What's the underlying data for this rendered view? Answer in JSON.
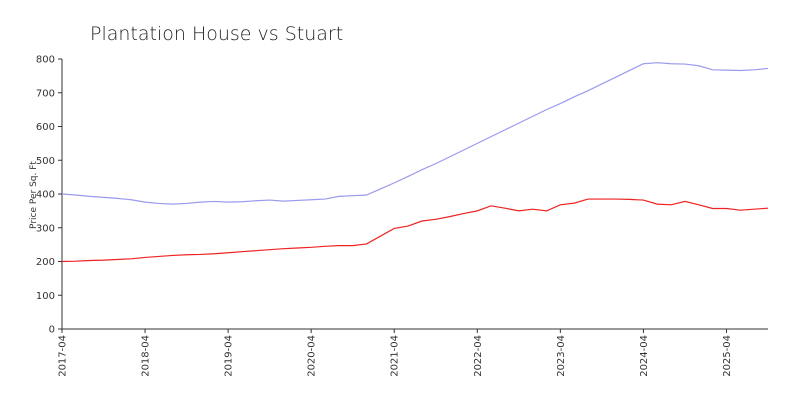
{
  "chart_data": {
    "type": "line",
    "title": "Plantation House vs Stuart",
    "y_label": "Price Per Sq. Ft",
    "x": [
      "2017-04",
      "2017-06",
      "2017-08",
      "2017-10",
      "2017-12",
      "2018-02",
      "2018-04",
      "2018-06",
      "2018-08",
      "2018-10",
      "2018-12",
      "2019-02",
      "2019-04",
      "2019-06",
      "2019-08",
      "2019-10",
      "2019-12",
      "2020-02",
      "2020-04",
      "2020-06",
      "2020-08",
      "2020-10",
      "2020-12",
      "2021-02",
      "2021-04",
      "2021-06",
      "2021-08",
      "2021-10",
      "2021-12",
      "2022-02",
      "2022-04",
      "2022-06",
      "2022-08",
      "2022-10",
      "2022-12",
      "2023-02",
      "2023-04",
      "2023-06",
      "2023-08",
      "2023-10",
      "2023-12",
      "2024-02",
      "2024-04",
      "2024-06",
      "2024-08",
      "2024-10",
      "2024-12",
      "2025-02",
      "2025-04",
      "2025-06",
      "2025-08",
      "2025-10"
    ],
    "series": [
      {
        "color": "#9a9aee",
        "values": [
          400,
          397,
          393,
          390,
          387,
          383,
          376,
          372,
          370,
          372,
          376,
          378,
          376,
          377,
          380,
          382,
          379,
          381,
          383,
          385,
          393,
          395,
          397,
          415,
          433,
          452,
          472,
          490,
          510,
          530,
          550,
          570,
          590,
          610,
          630,
          650,
          668,
          688,
          706,
          726,
          746,
          766,
          786,
          789,
          786,
          785,
          780,
          768,
          767,
          766,
          768,
          772
        ]
      },
      {
        "color": "#ee2222",
        "values": [
          200,
          201,
          203,
          204,
          206,
          208,
          212,
          215,
          218,
          220,
          221,
          223,
          226,
          229,
          232,
          235,
          238,
          240,
          242,
          245,
          247,
          247,
          252,
          275,
          298,
          305,
          320,
          325,
          333,
          342,
          350,
          365,
          358,
          350,
          355,
          350,
          368,
          373,
          385,
          385,
          385,
          384,
          382,
          370,
          368,
          378,
          368,
          357,
          357,
          352,
          355,
          358
        ]
      }
    ],
    "xlim": [
      "2017-04",
      "2025-10"
    ],
    "xticks": [
      "2017-04",
      "2018-04",
      "2019-04",
      "2020-04",
      "2021-04",
      "2022-04",
      "2023-04",
      "2024-04",
      "2025-04"
    ],
    "ylim": [
      0,
      800
    ],
    "yticks": [
      0,
      100,
      200,
      300,
      400,
      500,
      600,
      700,
      800
    ],
    "grid": false
  }
}
